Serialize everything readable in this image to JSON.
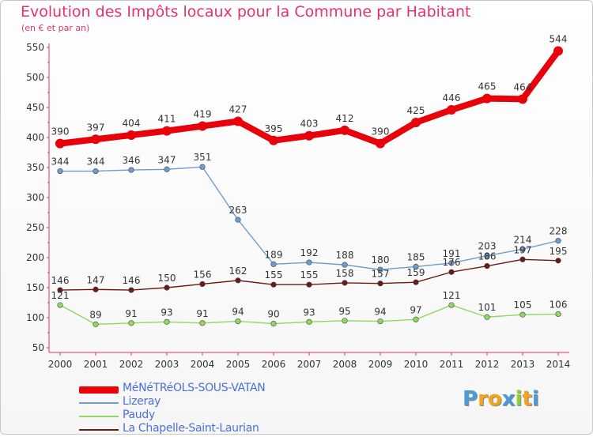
{
  "title": "Evolution des Impôts locaux pour la Commune par Habitant",
  "subtitle": "(en € et par an)",
  "chart_data": {
    "type": "line",
    "title": "Evolution des Impôts locaux pour la Commune par Habitant",
    "subtitle": "(en € et par an)",
    "xlabel": "",
    "ylabel": "",
    "ylim": [
      50,
      550
    ],
    "yticks": [
      50,
      100,
      150,
      200,
      250,
      300,
      350,
      400,
      450,
      500,
      550
    ],
    "grid": false,
    "legend_position": "bottom-left",
    "x": [
      "2000",
      "2001",
      "2002",
      "2003",
      "2004",
      "2005",
      "2006",
      "2007",
      "2008",
      "2009",
      "2010",
      "2011",
      "2012",
      "2013",
      "2014"
    ],
    "series": [
      {
        "name": "MéNéTRéOLS-SOUS-VATAN",
        "color": "#e8000b",
        "values": [
          390,
          397,
          404,
          411,
          419,
          427,
          395,
          403,
          412,
          390,
          425,
          446,
          465,
          464,
          544
        ]
      },
      {
        "name": "Lizeray",
        "color": "#6e9ccf",
        "values": [
          344,
          344,
          346,
          347,
          351,
          263,
          189,
          192,
          188,
          180,
          185,
          191,
          203,
          214,
          228
        ]
      },
      {
        "name": "Paudy",
        "color": "#92d760",
        "values": [
          121,
          89,
          91,
          93,
          91,
          94,
          90,
          93,
          95,
          94,
          97,
          121,
          101,
          105,
          106
        ]
      },
      {
        "name": "La Chapelle-Saint-Laurian",
        "color": "#6b1a1a",
        "values": [
          146,
          147,
          146,
          150,
          156,
          162,
          155,
          155,
          158,
          157,
          159,
          176,
          186,
          197,
          195
        ]
      }
    ]
  },
  "logo": {
    "letters": [
      "P",
      "r",
      "o",
      "x",
      "i",
      "t",
      "i"
    ],
    "colors": [
      "#4a9ad8",
      "#f3a31c",
      "#f3a31c",
      "#4a9ad8",
      "#8fcf3c",
      "#f3a31c",
      "#4a9ad8"
    ]
  }
}
